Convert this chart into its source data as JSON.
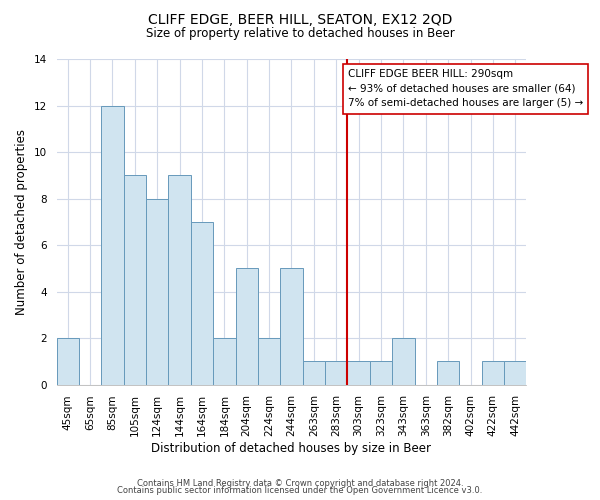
{
  "title": "CLIFF EDGE, BEER HILL, SEATON, EX12 2QD",
  "subtitle": "Size of property relative to detached houses in Beer",
  "xlabel": "Distribution of detached houses by size in Beer",
  "ylabel": "Number of detached properties",
  "bar_color": "#d0e4f0",
  "bar_edgecolor": "#6699bb",
  "bar_linewidth": 0.7,
  "categories": [
    "45sqm",
    "65sqm",
    "85sqm",
    "105sqm",
    "124sqm",
    "144sqm",
    "164sqm",
    "184sqm",
    "204sqm",
    "224sqm",
    "244sqm",
    "263sqm",
    "283sqm",
    "303sqm",
    "323sqm",
    "343sqm",
    "363sqm",
    "382sqm",
    "402sqm",
    "422sqm",
    "442sqm"
  ],
  "values": [
    2,
    0,
    12,
    9,
    8,
    9,
    7,
    2,
    5,
    2,
    5,
    1,
    1,
    1,
    1,
    2,
    0,
    1,
    0,
    1,
    1
  ],
  "ylim": [
    0,
    14
  ],
  "yticks": [
    0,
    2,
    4,
    6,
    8,
    10,
    12,
    14
  ],
  "vline_x_index": 13,
  "vline_color": "#cc0000",
  "annotation_title": "CLIFF EDGE BEER HILL: 290sqm",
  "annotation_line1": "← 93% of detached houses are smaller (64)",
  "annotation_line2": "7% of semi-detached houses are larger (5) →",
  "footer1": "Contains HM Land Registry data © Crown copyright and database right 2024.",
  "footer2": "Contains public sector information licensed under the Open Government Licence v3.0.",
  "background_color": "#ffffff",
  "grid_color": "#d0d8e8",
  "title_fontsize": 10,
  "subtitle_fontsize": 8.5,
  "xlabel_fontsize": 8.5,
  "ylabel_fontsize": 8.5,
  "tick_fontsize": 7.5,
  "footer_fontsize": 6.0,
  "ann_fontsize": 7.5
}
